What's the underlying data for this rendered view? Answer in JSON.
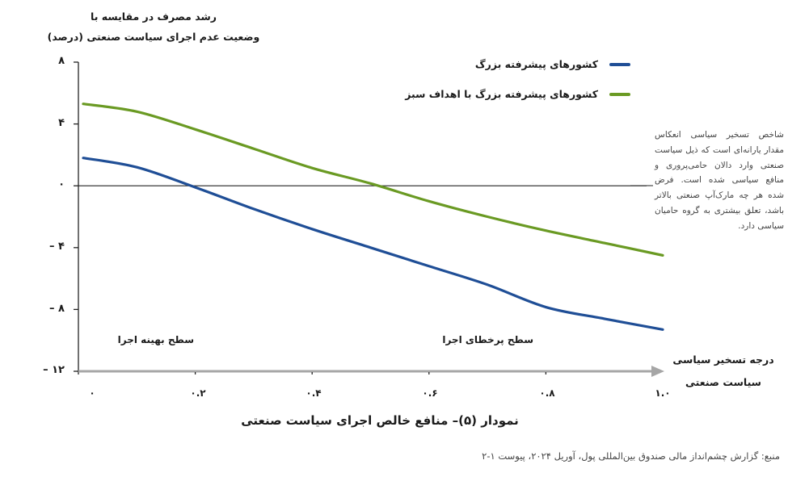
{
  "chart_data": {
    "type": "line",
    "title": "نمودار (۵)– منافع خالص اجرای سیاست صنعتی",
    "ylabel": "رشد مصرف در مقایسه با وضعیت عدم اجرای سیاست صنعتی (درصد)",
    "xlabel": "درجه تسخیر سیاسی سیاست صنعتی",
    "ylim": [
      -12,
      8
    ],
    "xlim": [
      0,
      1.0
    ],
    "y_ticks": [
      8,
      4,
      0,
      -4,
      -8,
      -12
    ],
    "y_tick_labels": [
      "۸",
      "۴",
      "۰",
      "– ۴",
      "– ۸",
      "– ۱۲"
    ],
    "x_ticks": [
      0,
      0.2,
      0.4,
      0.6,
      0.8,
      1.0
    ],
    "x_tick_labels": [
      "۰",
      "۰.۲",
      "۰.۴",
      "۰.۶",
      "۰.۸",
      "۱.۰"
    ],
    "grid": false,
    "legend_position": "top-right",
    "x": [
      0,
      0.1,
      0.2,
      0.3,
      0.4,
      0.5,
      0.6,
      0.7,
      0.8,
      0.9,
      1.0
    ],
    "series": [
      {
        "name": "کشورهای پیشرفته بزرگ",
        "color": "#1f4e96",
        "values": [
          1.8,
          1.2,
          -0.1,
          -1.5,
          -2.8,
          -4.0,
          -5.2,
          -6.4,
          -7.85,
          -8.6,
          -9.3
        ]
      },
      {
        "name": "کشورهای پیشرفته بزرگ با اهداف سبز",
        "color": "#6a9a23",
        "values": [
          5.3,
          4.8,
          3.65,
          2.4,
          1.15,
          0.15,
          -1.0,
          -2.0,
          -2.9,
          -3.7,
          -4.5
        ]
      }
    ],
    "annotations": [
      {
        "text": "سطح بهینه اجرا",
        "x": 0.05,
        "y": -10.2
      },
      {
        "text": "سطح پرخطای اجرا",
        "x": 0.65,
        "y": -10.2
      }
    ]
  },
  "figure": {
    "ylabel_line1": "رشد مصرف در مقایسه با",
    "ylabel_line2": "وضعیت عدم اجرای سیاست صنعتی (درصد)",
    "xaxis_title_line1": "درجه تسخیر سیاسی",
    "xaxis_title_line2": "سیاست صنعتی",
    "caption": "نمودار (۵)– منافع خالص اجرای سیاست صنعتی",
    "source": "منبع: گزارش چشم‌انداز مالی صندوق بین‌المللی پول، آوریل ۲۰۲۴، پیوست ۱-۲",
    "note": "شاخص تسخیر سیاسی انعکاس مقدار یارانه‌ای است که ذیل سیاست صنعتی وارد دالان حامی‌پروری و منافع سیاسی شده است. فرض شده هر چه مارک‌آپ صنعتی بالاتر باشد، تعلق بیشتری به گروه حامیان سیاسی دارد.",
    "annotation_optimal": "سطح بهینه اجرا",
    "annotation_risky": "سطح پرخطای اجرا",
    "legend": [
      {
        "label": "کشورهای پیشرفته بزرگ",
        "color": "#1f4e96"
      },
      {
        "label": "کشورهای پیشرفته بزرگ با اهداف سبز",
        "color": "#6a9a23"
      }
    ],
    "axis_color": "#222222",
    "xaxis_arrow_color": "#a6a6a6"
  }
}
